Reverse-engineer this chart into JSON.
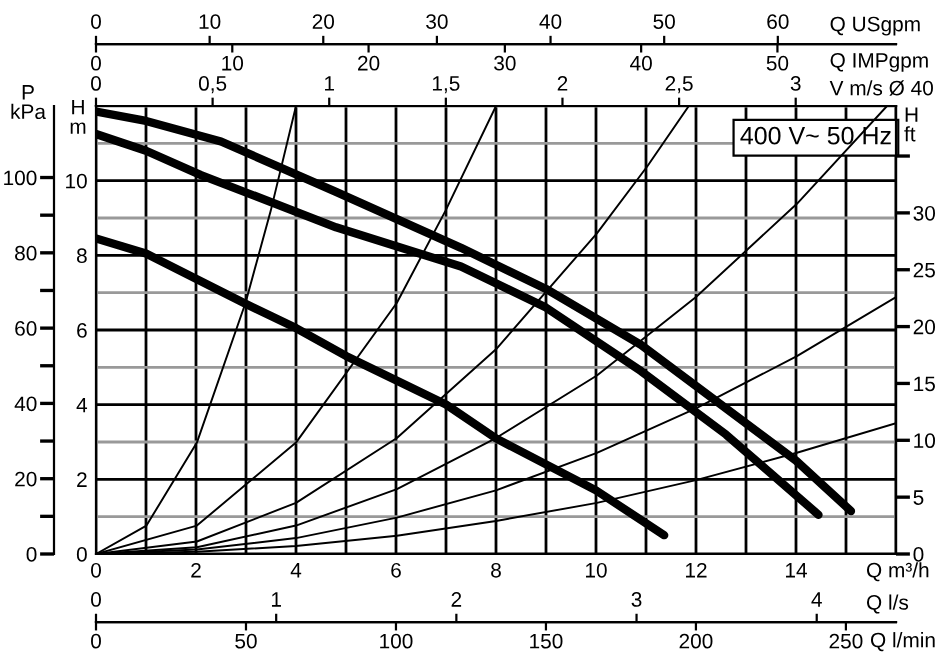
{
  "chart_data": [
    {
      "type": "line",
      "xlabel": "Q m³/h",
      "ylabel": "H\nm",
      "x2label": "V m/s Ø 40",
      "xlim": [
        0,
        16
      ],
      "xticks": [
        0,
        {
          "value": 1,
          "label": null
        },
        2,
        {
          "value": 3,
          "label": null
        },
        4,
        {
          "value": 5,
          "label": null
        },
        6,
        {
          "value": 7,
          "label": null
        },
        8,
        {
          "value": 9,
          "label": null
        },
        10,
        {
          "value": 11,
          "label": null
        },
        12,
        {
          "value": 13,
          "label": null
        },
        14,
        {
          "value": 15,
          "label": null
        },
        {
          "value": 16,
          "label": null
        }
      ],
      "ylim": [
        0,
        12
      ],
      "yticks": [
        0,
        {
          "value": 1,
          "label": null
        },
        2,
        {
          "value": 3,
          "label": null
        },
        4,
        {
          "value": 5,
          "label": null
        },
        6,
        {
          "value": 7,
          "label": null
        },
        8,
        {
          "value": 9,
          "label": null
        },
        10,
        {
          "value": 11,
          "label": null
        },
        {
          "value": 12,
          "label": null
        }
      ],
      "x2lim": [
        0,
        3.43
      ],
      "x2ticks": [
        0,
        {
          "value": 0.5,
          "label": "0,5"
        },
        1,
        {
          "value": 1.5,
          "label": "1,5"
        },
        2,
        {
          "value": 2.5,
          "label": "2,5"
        },
        3
      ],
      "grid": true,
      "annotations": [
        "400 V~ 50 Hz"
      ],
      "series": [
        {
          "color": "#000000",
          "x": [
            0,
            1,
            2.5,
            4.8,
            7.3,
            9,
            10.9,
            12.6,
            14,
            15.1
          ],
          "values": [
            11.85,
            11.6,
            11.05,
            9.7,
            8.2,
            7.1,
            5.6,
            3.9,
            2.5,
            1.15
          ]
        },
        {
          "color": "#000000",
          "x": [
            0,
            1,
            2.1,
            4.8,
            7.3,
            9,
            10.9,
            12.6,
            14.45
          ],
          "values": [
            11.25,
            10.8,
            10.15,
            8.75,
            7.7,
            6.6,
            4.9,
            3.2,
            1.05
          ]
        }
      ]
    },
    {
      "type": "line",
      "xlabel": "Q l/s",
      "x2label": "Q l/min",
      "ylabel": "H\nft",
      "xlim": [
        0,
        4.44
      ],
      "xticks": [
        0,
        1,
        2,
        3,
        4
      ],
      "x2lim": [
        0,
        266.7
      ],
      "x2ticks": [
        0,
        50,
        100,
        150,
        200,
        250
      ],
      "ylim": [
        0,
        39.4
      ],
      "yticks": [
        0,
        5,
        10,
        15,
        20,
        25,
        30,
        {
          "value": 35,
          "label": null
        }
      ],
      "series": [
        {
          "color": "#000000",
          "x": [
            0,
            0.28,
            0.56,
            0.83,
            0.97,
            1.11
          ],
          "values": [
            0,
            2.5,
            9.8,
            22.1,
            30.2,
            39.4
          ]
        },
        {
          "color": "#000000",
          "x": [
            0,
            0.56,
            1.11,
            1.67,
            1.94,
            2.22
          ],
          "values": [
            0,
            2.5,
            9.8,
            22.1,
            30.2,
            39.4
          ]
        },
        {
          "color": "#000000",
          "x": [
            0,
            0.56,
            1.11,
            1.67,
            2.22,
            2.78,
            3.06,
            3.29
          ],
          "values": [
            0,
            1.1,
            4.5,
            10.2,
            18.0,
            28.2,
            34.1,
            39.4
          ]
        },
        {
          "color": "#000000",
          "x": [
            0,
            0.56,
            1.11,
            1.67,
            2.22,
            2.78,
            3.33,
            3.89,
            4.39
          ],
          "values": [
            0,
            0.6,
            2.5,
            5.7,
            10.2,
            15.7,
            22.6,
            30.8,
            39.4
          ]
        },
        {
          "color": "#000000",
          "x": [
            0,
            0.56,
            1.11,
            1.67,
            2.22,
            2.78,
            3.33,
            3.89,
            4.44
          ],
          "values": [
            0,
            0.4,
            1.4,
            3.2,
            5.6,
            8.9,
            12.8,
            17.4,
            22.6
          ]
        },
        {
          "color": "#000000",
          "x": [
            0,
            0.56,
            1.11,
            1.67,
            2.22,
            2.78,
            3.33,
            3.89,
            4.44
          ],
          "values": [
            0,
            0.2,
            0.7,
            1.6,
            2.9,
            4.5,
            6.5,
            8.9,
            11.5
          ]
        }
      ]
    },
    {
      "type": "line",
      "xlabel": "Q USgpm",
      "x2label": "Q IMPgpm",
      "ylabel": "P\nkPa",
      "xlim": [
        0,
        70.4
      ],
      "xticks": [
        0,
        10,
        20,
        30,
        40,
        50,
        60
      ],
      "x2lim": [
        0,
        58.7
      ],
      "x2ticks": [
        0,
        10,
        20,
        30,
        40,
        50
      ],
      "ylim": [
        0,
        119
      ],
      "yticks": [
        0,
        {
          "value": 10,
          "label": null
        },
        20,
        {
          "value": 30,
          "label": null
        },
        40,
        {
          "value": 50,
          "label": null
        },
        60,
        {
          "value": 70,
          "label": null
        },
        80,
        {
          "value": 90,
          "label": null
        },
        100
      ],
      "series": [
        {
          "color": "#000000",
          "x": [
            0,
            4.4,
            13.2,
            17.6,
            22.0,
            30.8,
            35.2,
            44.0,
            50.0
          ],
          "values": [
            83.8,
            79.8,
            66.4,
            60.0,
            52.6,
            39.7,
            30.7,
            16.9,
            5.0
          ]
        }
      ]
    }
  ]
}
